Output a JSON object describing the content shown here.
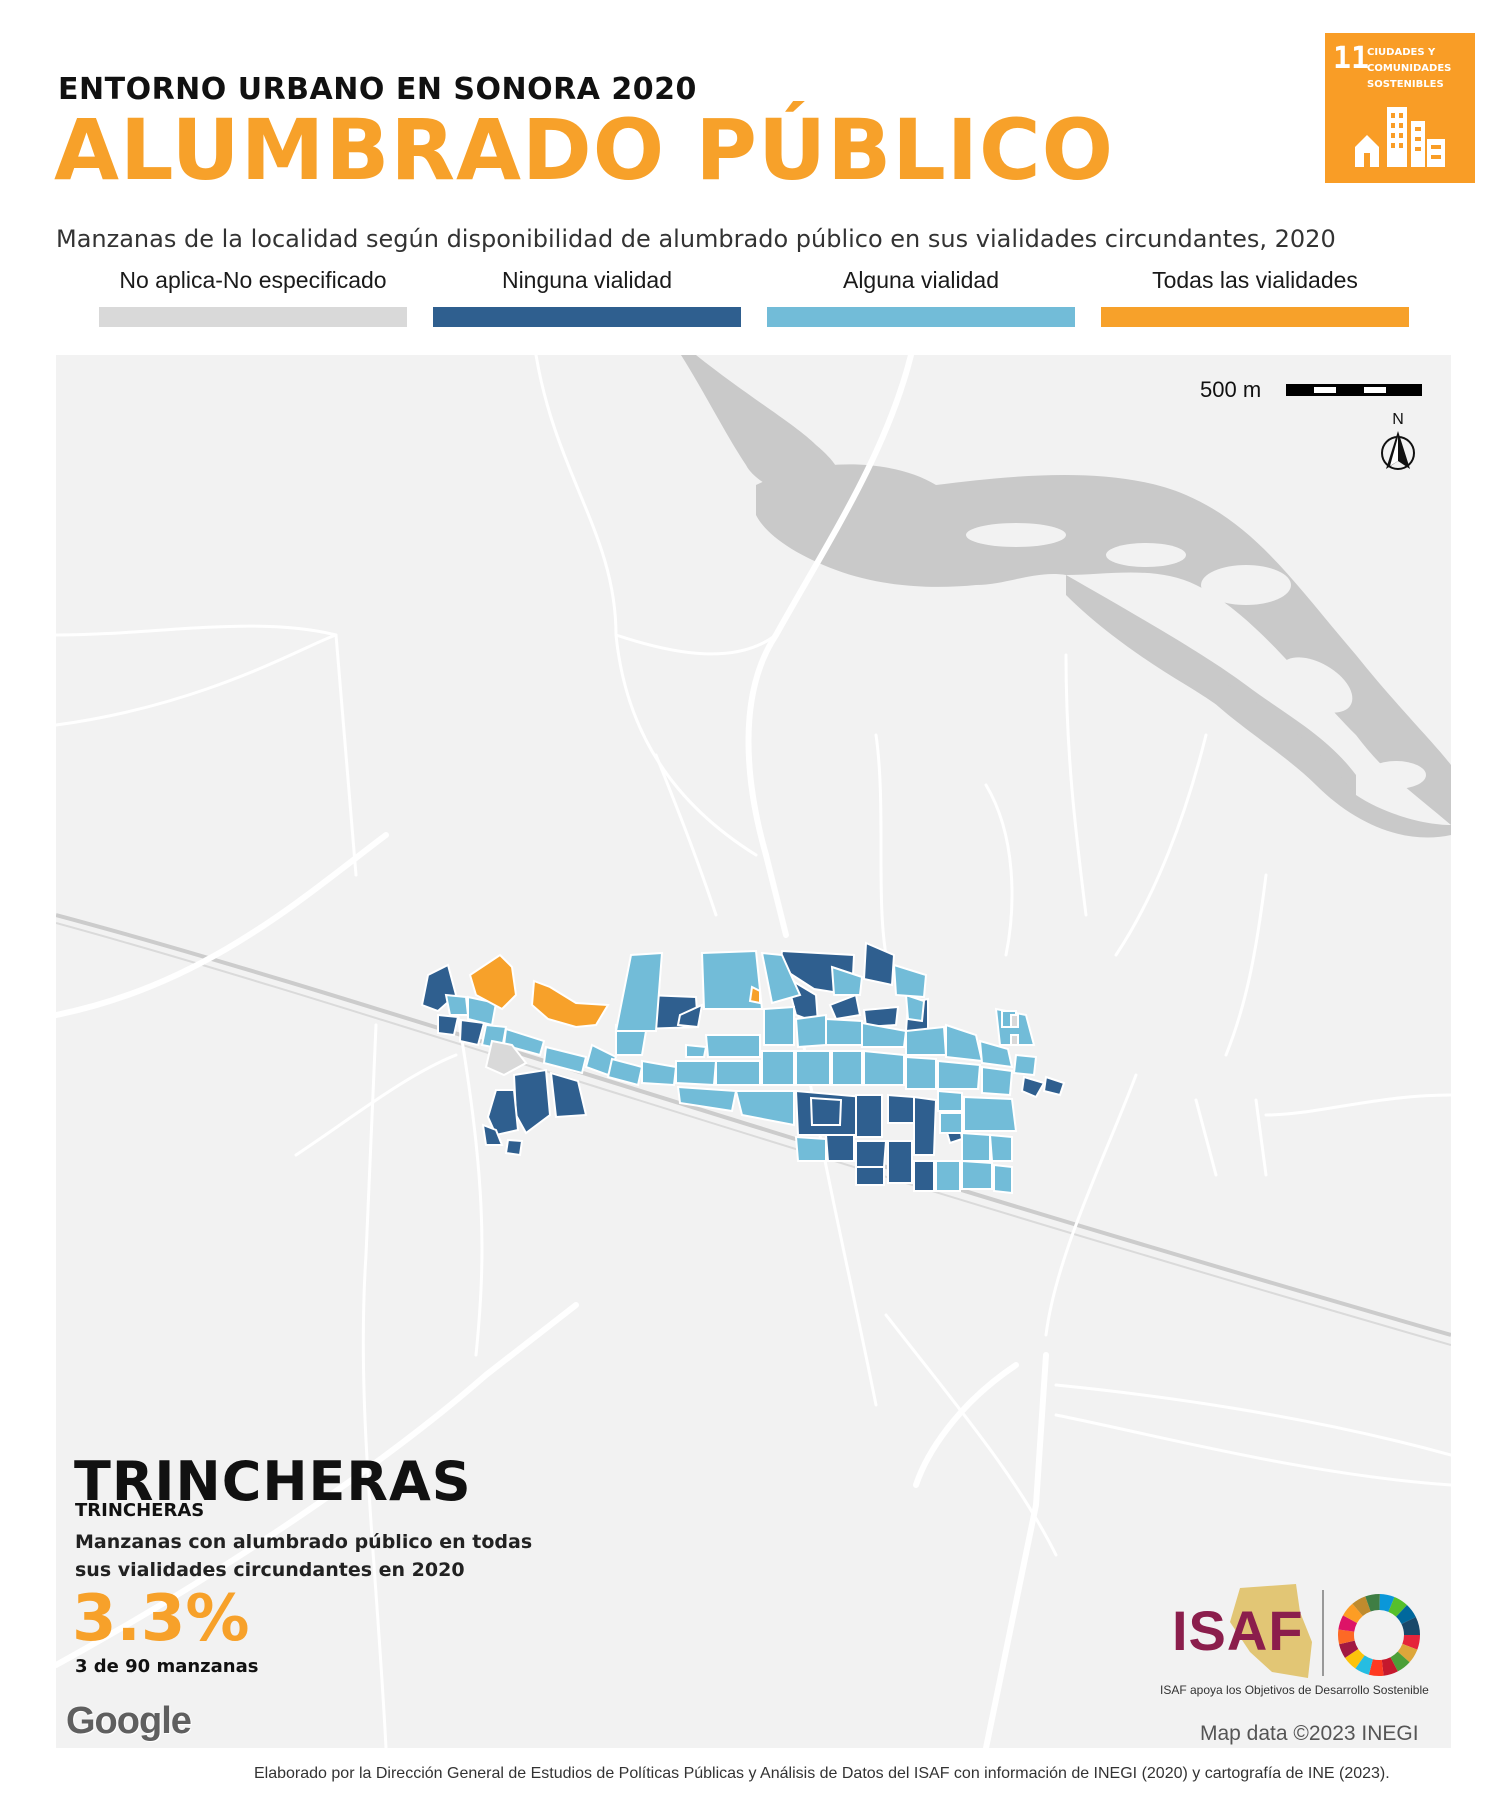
{
  "header": {
    "kicker": "ENTORNO URBANO EN SONORA 2020",
    "title": "ALUMBRADO PÚBLICO",
    "subtitle": "Manzanas de la localidad según disponibilidad de alumbrado público en sus vialidades circundantes, 2020"
  },
  "sdg_badge": {
    "number": "11",
    "text": "CIUDADES Y COMUNIDADES SOSTENIBLES",
    "color": "#F99D26",
    "icon": "city-buildings-icon"
  },
  "legend": [
    {
      "label": "No aplica-No especificado",
      "color": "#D9D9D9"
    },
    {
      "label": "Ninguna vialidad",
      "color": "#2F5F8F"
    },
    {
      "label": "Alguna vialidad",
      "color": "#72BCD8"
    },
    {
      "label": "Todas las vialidades",
      "color": "#F7A12A"
    }
  ],
  "map": {
    "scale_label": "500 m",
    "north_label": "N",
    "google_logo": "Google",
    "attribution": "Map data ©2023 INEGI"
  },
  "locality": {
    "name": "TRINCHERAS",
    "municipality": "TRINCHERAS",
    "description": "Manzanas con alumbrado público en todas sus vialidades circundantes en 2020",
    "percentage": "3.3%",
    "count_text": "3 de 90 manzanas"
  },
  "branding": {
    "isaf_logo": "ISAF",
    "isaf_tagline": "ISAF apoya los Objetivos de Desarrollo Sostenible",
    "sdg_wheel_icon": "sdg-wheel-icon"
  },
  "footer": {
    "credit": "Elaborado por la Dirección General de Estudios de Políticas Públicas y Análisis de Datos del ISAF con información de INEGI (2020) y cartografía de INE (2023)."
  }
}
